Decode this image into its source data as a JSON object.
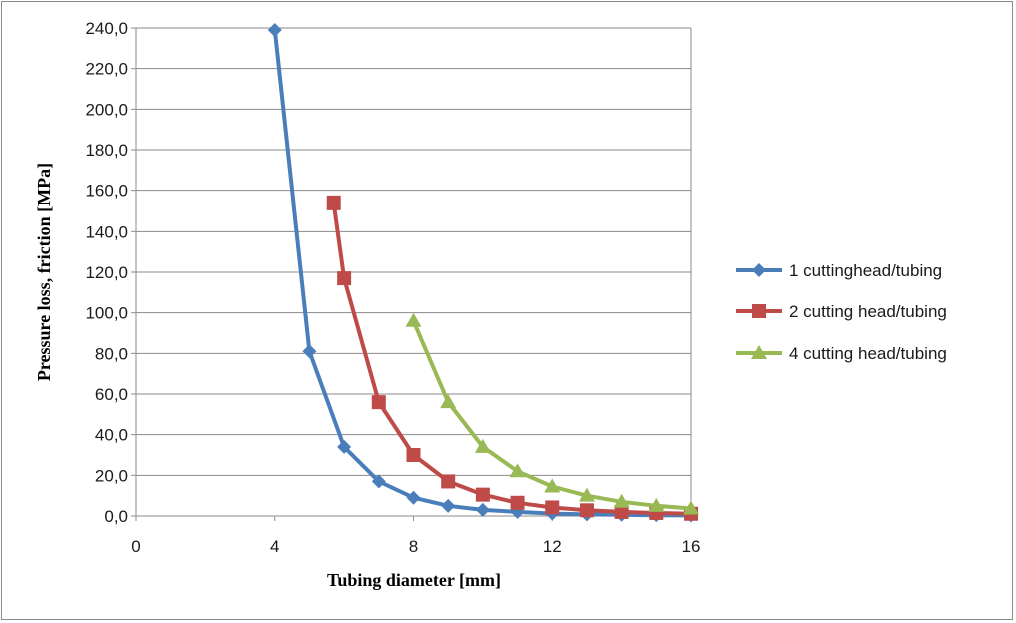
{
  "chart_data": {
    "type": "line",
    "xlabel": "Tubing diameter [mm]",
    "ylabel": "Pressure loss, friction [MPa]",
    "xlim": [
      0,
      16
    ],
    "ylim": [
      0,
      240
    ],
    "xticks": [
      "0",
      "4",
      "8",
      "12",
      "16"
    ],
    "yticks": [
      "0,0",
      "20,0",
      "40,0",
      "60,0",
      "80,0",
      "100,0",
      "120,0",
      "140,0",
      "160,0",
      "180,0",
      "200,0",
      "220,0",
      "240,0"
    ],
    "grid": "horizontal",
    "legend_position": "right",
    "series": [
      {
        "name": "1 cuttinghead/tubing",
        "color": "#4a7ebb",
        "marker": "diamond",
        "points": [
          [
            4,
            239
          ],
          [
            5,
            81
          ],
          [
            6,
            34
          ],
          [
            7,
            17
          ],
          [
            8,
            9
          ],
          [
            9,
            5
          ],
          [
            10,
            3
          ],
          [
            11,
            2
          ],
          [
            12,
            1.2
          ],
          [
            13,
            0.8
          ],
          [
            14,
            0.6
          ],
          [
            15,
            0.4
          ],
          [
            16,
            0.3
          ]
        ]
      },
      {
        "name": "2 cutting head/tubing",
        "color": "#be4b48",
        "marker": "square",
        "points": [
          [
            5.7,
            154
          ],
          [
            6,
            117
          ],
          [
            7,
            56
          ],
          [
            8,
            30
          ],
          [
            9,
            17
          ],
          [
            10,
            10.5
          ],
          [
            11,
            6.5
          ],
          [
            12,
            4.2
          ],
          [
            13,
            2.8
          ],
          [
            14,
            2
          ],
          [
            15,
            1.5
          ],
          [
            16,
            1.1
          ]
        ]
      },
      {
        "name": "4 cutting head/tubing",
        "color": "#98b954",
        "marker": "triangle",
        "points": [
          [
            8,
            96
          ],
          [
            9,
            56
          ],
          [
            10,
            34
          ],
          [
            11,
            22
          ],
          [
            12,
            14.5
          ],
          [
            13,
            10
          ],
          [
            14,
            7
          ],
          [
            15,
            5
          ],
          [
            16,
            3.7
          ]
        ]
      }
    ]
  }
}
